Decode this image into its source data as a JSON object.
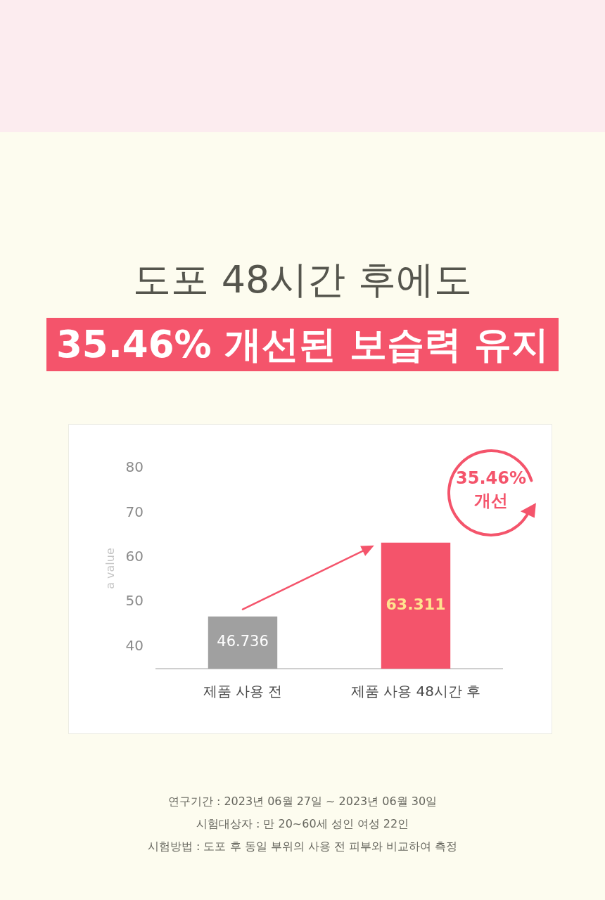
{
  "chart_data": {
    "type": "bar",
    "title": "도포 48시간 후에도",
    "subtitle": "35.46% 개선된 보습력 유지",
    "ylabel": "a value",
    "categories": [
      "제품 사용 전",
      "제품 사용 48시간 후"
    ],
    "values": [
      46.736,
      63.311
    ],
    "colors": [
      "#a0a0a0",
      "#f4546b"
    ],
    "ylim": [
      35,
      80
    ],
    "yticks": [
      40,
      50,
      60,
      70,
      80
    ],
    "data_labels": true,
    "annotations": [
      "35.46% 개선",
      "연구기간 : 2023년 06월 27일 ~ 2023년 06월 30일",
      "시험대상자 : 만 20~60세 성인 여성 22인",
      "시험방법 : 도포 후 동일 부위의 사용 전 피부와 비교하여 측정"
    ]
  }
}
